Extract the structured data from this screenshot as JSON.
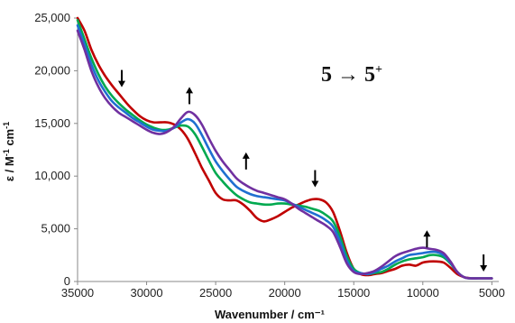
{
  "chart_data": {
    "type": "line",
    "title": "",
    "annotation": {
      "base": "5 → 5",
      "sup": "+"
    },
    "xlabel": "Wavenumber / cm⁻¹",
    "ylabel": {
      "text": "ε / M",
      "sup1": "-1",
      "mid": " cm",
      "sup2": "-1"
    },
    "xlim": [
      35000,
      4500
    ],
    "ylim": [
      0,
      25000
    ],
    "x_reversed": true,
    "x_ticks": [
      35000,
      30000,
      25000,
      20000,
      15000,
      10000,
      5000
    ],
    "x_tick_labels": [
      "35000",
      "30000",
      "25000",
      "20000",
      "15000",
      "10000",
      "5000"
    ],
    "y_ticks": [
      0,
      5000,
      10000,
      15000,
      20000,
      25000
    ],
    "y_tick_labels": [
      "0",
      "5,000",
      "10,000",
      "15,000",
      "20,000",
      "25,000"
    ],
    "grid": false,
    "legend": "none",
    "arrows": [
      {
        "x": 31800,
        "y": 19300,
        "dir": "down"
      },
      {
        "x": 26900,
        "y": 17600,
        "dir": "up"
      },
      {
        "x": 22800,
        "y": 11400,
        "dir": "up"
      },
      {
        "x": 17800,
        "y": 9800,
        "dir": "down"
      },
      {
        "x": 9700,
        "y": 4000,
        "dir": "up"
      },
      {
        "x": 5600,
        "y": 1800,
        "dir": "down"
      }
    ],
    "series": [
      {
        "color": "#c00000",
        "x": [
          35000,
          34500,
          34000,
          33500,
          33000,
          32500,
          32000,
          31500,
          31000,
          30500,
          30000,
          29500,
          29000,
          28500,
          28000,
          27500,
          27000,
          26500,
          26000,
          25500,
          25000,
          24500,
          24000,
          23500,
          23000,
          22500,
          22000,
          21500,
          21000,
          20500,
          20000,
          19500,
          19000,
          18500,
          18000,
          17500,
          17000,
          16500,
          16000,
          15500,
          15000,
          14500,
          14000,
          13500,
          13000,
          12500,
          12000,
          11500,
          11000,
          10500,
          10000,
          9500,
          9000,
          8500,
          8000,
          7500,
          7000,
          6500,
          6000,
          5500,
          5000
        ],
        "y": [
          25000,
          23800,
          22000,
          20600,
          19500,
          18600,
          17800,
          17000,
          16300,
          15700,
          15300,
          15100,
          15100,
          15100,
          14900,
          14400,
          13500,
          12200,
          10800,
          9600,
          8400,
          7800,
          7700,
          7700,
          7300,
          6700,
          6000,
          5700,
          5900,
          6200,
          6600,
          7000,
          7300,
          7600,
          7800,
          7800,
          7500,
          6600,
          4800,
          2700,
          1200,
          700,
          600,
          700,
          800,
          1000,
          1200,
          1500,
          1600,
          1500,
          1800,
          1900,
          1900,
          1800,
          1300,
          700,
          400,
          300,
          300,
          300,
          300
        ]
      },
      {
        "color": "#00a94f",
        "x": [
          35000,
          34500,
          34000,
          33500,
          33000,
          32500,
          32000,
          31500,
          31000,
          30500,
          30000,
          29500,
          29000,
          28500,
          28000,
          27500,
          27000,
          26500,
          26000,
          25500,
          25000,
          24500,
          24000,
          23500,
          23000,
          22500,
          22000,
          21500,
          21000,
          20500,
          20000,
          19500,
          19000,
          18500,
          18000,
          17500,
          17000,
          16500,
          16000,
          15500,
          15000,
          14500,
          14000,
          13500,
          13000,
          12500,
          12000,
          11500,
          11000,
          10500,
          10000,
          9500,
          9000,
          8500,
          8000,
          7500,
          7000,
          6500,
          6000,
          5500,
          5000
        ],
        "y": [
          24800,
          23000,
          21200,
          19700,
          18500,
          17600,
          16900,
          16300,
          15800,
          15300,
          14900,
          14600,
          14400,
          14400,
          14600,
          14800,
          14700,
          14000,
          12800,
          11500,
          10300,
          9500,
          8800,
          8200,
          7800,
          7500,
          7400,
          7300,
          7300,
          7400,
          7400,
          7300,
          7200,
          7100,
          6900,
          6700,
          6300,
          5700,
          4300,
          2400,
          1200,
          800,
          700,
          800,
          900,
          1200,
          1600,
          1900,
          2100,
          2200,
          2300,
          2500,
          2500,
          2300,
          1700,
          900,
          400,
          300,
          300,
          300,
          300
        ]
      },
      {
        "color": "#1f6fd1",
        "x": [
          35000,
          34500,
          34000,
          33500,
          33000,
          32500,
          32000,
          31500,
          31000,
          30500,
          30000,
          29500,
          29000,
          28500,
          28000,
          27500,
          27000,
          26500,
          26000,
          25500,
          25000,
          24500,
          24000,
          23500,
          23000,
          22500,
          22000,
          21500,
          21000,
          20500,
          20000,
          19500,
          19000,
          18500,
          18000,
          17500,
          17000,
          16500,
          16000,
          15500,
          15000,
          14500,
          14000,
          13500,
          13000,
          12500,
          12000,
          11500,
          11000,
          10500,
          10000,
          9500,
          9000,
          8500,
          8000,
          7500,
          7000,
          6500,
          6000,
          5500,
          5000
        ],
        "y": [
          24300,
          22500,
          20600,
          19100,
          18000,
          17100,
          16500,
          16000,
          15500,
          15100,
          14700,
          14400,
          14300,
          14300,
          14600,
          15100,
          15400,
          15000,
          13900,
          12600,
          11400,
          10500,
          9700,
          9000,
          8600,
          8300,
          8100,
          8000,
          7900,
          7800,
          7700,
          7400,
          7100,
          6800,
          6500,
          6200,
          5800,
          5200,
          3800,
          2000,
          1000,
          800,
          700,
          900,
          1200,
          1500,
          1900,
          2200,
          2500,
          2600,
          2700,
          2800,
          2800,
          2500,
          1800,
          900,
          400,
          300,
          300,
          300,
          300
        ]
      },
      {
        "color": "#7030a0",
        "x": [
          35000,
          34500,
          34000,
          33500,
          33000,
          32500,
          32000,
          31500,
          31000,
          30500,
          30000,
          29500,
          29000,
          28500,
          28000,
          27500,
          27000,
          26500,
          26000,
          25500,
          25000,
          24500,
          24000,
          23500,
          23000,
          22500,
          22000,
          21500,
          21000,
          20500,
          20000,
          19500,
          19000,
          18500,
          18000,
          17500,
          17000,
          16500,
          16000,
          15500,
          15000,
          14500,
          14000,
          13500,
          13000,
          12500,
          12000,
          11500,
          11000,
          10500,
          10000,
          9500,
          9000,
          8500,
          8000,
          7500,
          7000,
          6500,
          6000,
          5500,
          5000
        ],
        "y": [
          23800,
          22000,
          20000,
          18500,
          17400,
          16600,
          16000,
          15600,
          15200,
          14800,
          14400,
          14100,
          14000,
          14200,
          14700,
          15500,
          16100,
          15800,
          14900,
          13600,
          12400,
          11400,
          10600,
          9800,
          9300,
          8900,
          8600,
          8400,
          8200,
          8000,
          7800,
          7400,
          6900,
          6500,
          6100,
          5700,
          5300,
          4700,
          3300,
          1700,
          900,
          700,
          800,
          1000,
          1400,
          1900,
          2400,
          2700,
          2900,
          3100,
          3200,
          3100,
          3000,
          2700,
          1900,
          900,
          400,
          300,
          300,
          300,
          300
        ]
      }
    ]
  }
}
